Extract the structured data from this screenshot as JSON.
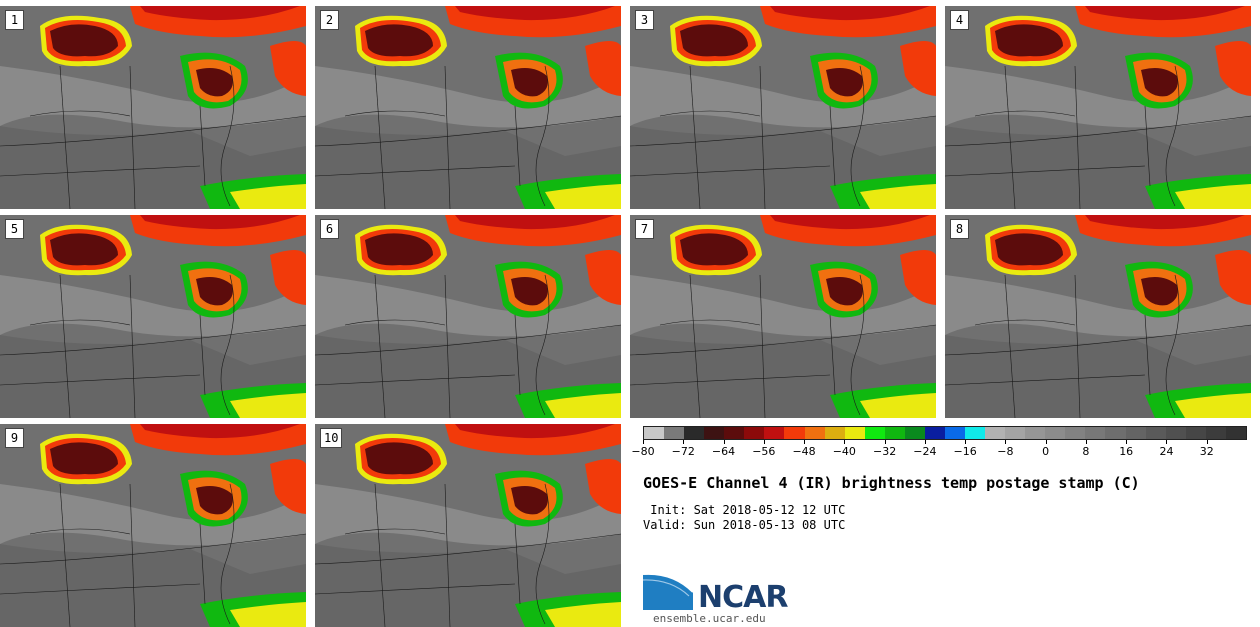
{
  "stamps": [
    "1",
    "2",
    "3",
    "4",
    "5",
    "6",
    "7",
    "8",
    "9",
    "10"
  ],
  "title": "GOES-E Channel 4 (IR) brightness temp postage stamp (C)",
  "init_line": " Init: Sat 2018-05-12 12 UTC",
  "valid_line": "Valid: Sun 2018-05-13 08 UTC",
  "logo_text": "NCAR",
  "site": "ensemble.ucar.edu",
  "colorbar": {
    "min": -80,
    "max": 40,
    "step": 4,
    "tick_labels": [
      "-80",
      "-72",
      "-64",
      "-56",
      "-48",
      "-40",
      "-32",
      "-24",
      "-16",
      "-8",
      "0",
      "8",
      "16",
      "24",
      "32"
    ],
    "tick_values": [
      -80,
      -72,
      -64,
      -56,
      -48,
      -40,
      -32,
      -24,
      -16,
      -8,
      0,
      8,
      16,
      24,
      32
    ],
    "colors": [
      "#c8c8c8",
      "#7a7a7a",
      "#2a2a2a",
      "#3d1212",
      "#5c0c0c",
      "#8c0a0a",
      "#c01010",
      "#f23a0a",
      "#f07010",
      "#dcae10",
      "#eaea10",
      "#10ea10",
      "#10b810",
      "#0a8a1e",
      "#0a1ea0",
      "#0a6ae8",
      "#10eaea",
      "#b2b2b2",
      "#a4a4a4",
      "#969696",
      "#8c8c8c",
      "#828282",
      "#787878",
      "#6e6e6e",
      "#646464",
      "#5a5a5a",
      "#505050",
      "#464646",
      "#3c3c3c",
      "#323232"
    ]
  }
}
